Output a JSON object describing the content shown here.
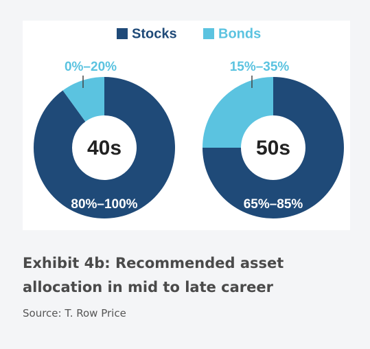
{
  "chart_data": [
    {
      "type": "donut",
      "center_label": "40s",
      "categories": [
        "Stocks",
        "Bonds"
      ],
      "colors": [
        "#1f4a78",
        "#5bc3e0"
      ],
      "values": [
        90,
        10
      ],
      "range_labels": [
        "80%–100%",
        "0%–20%"
      ]
    },
    {
      "type": "donut",
      "center_label": "50s",
      "categories": [
        "Stocks",
        "Bonds"
      ],
      "colors": [
        "#1f4a78",
        "#5bc3e0"
      ],
      "values": [
        75,
        25
      ],
      "range_labels": [
        "65%–85%",
        "15%–35%"
      ]
    }
  ],
  "caption": {
    "title": "Exhibit 4b: Recommended asset allocation in mid to late career",
    "source": "Source: T. Row Price"
  }
}
